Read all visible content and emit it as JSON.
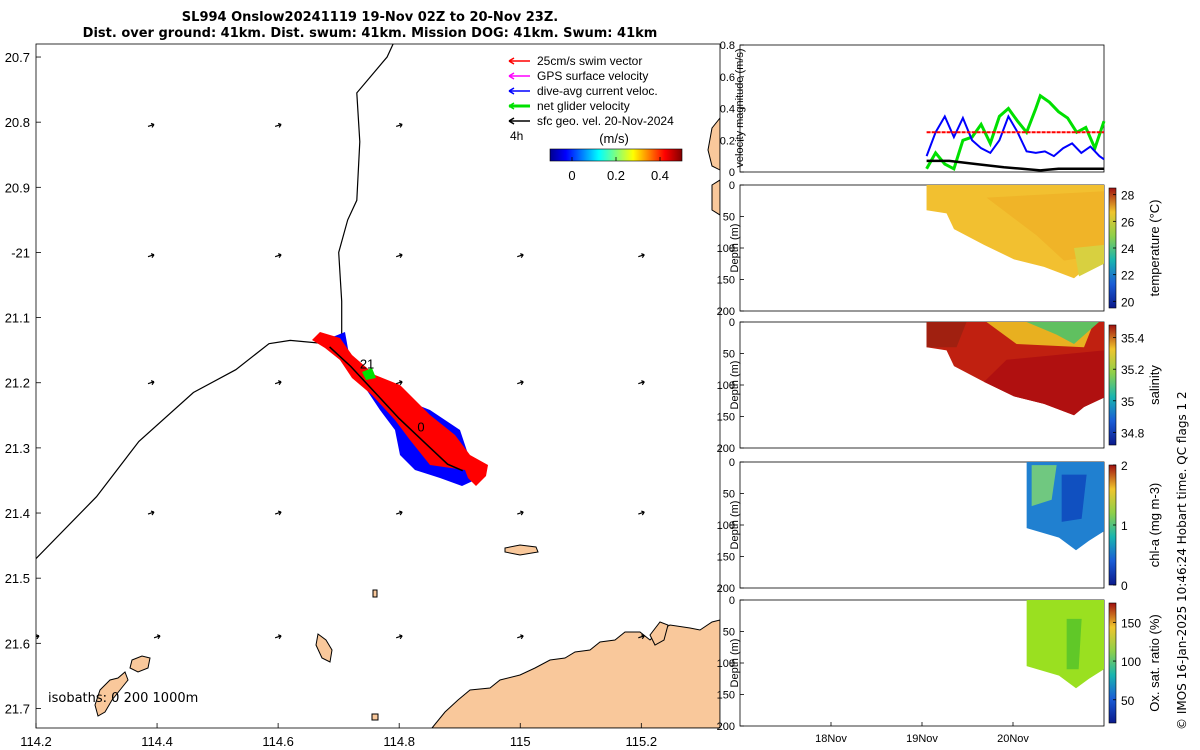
{
  "header": {
    "title_line1": "SL994 Onslow20241119 19-Nov 02Z to 20-Nov 23Z.",
    "title_line2": "Dist. over ground: 41km. Dist. swum: 41km. Mission DOG: 41km. Swum: 41km"
  },
  "footer_stamp": "© IMOS 16-Jan-2025 10:46:24 Hobart time. QC flags 1  2",
  "colors": {
    "land": "#f9c89b",
    "track": "#000000",
    "swim": "#ff0000",
    "gps": "#ff00ff",
    "current": "#0000ff",
    "net": "#00e000",
    "sfc": "#000000"
  },
  "chart_data": [
    {
      "type": "map",
      "name": "glider-track-map",
      "xaxis": {
        "ticks": [
          114.2,
          114.4,
          114.6,
          114.8,
          115,
          115.2
        ],
        "tick_labels": [
          "114.2",
          "114.4",
          "114.6",
          "114.8",
          "115",
          "115.2"
        ],
        "lim": [
          114.2,
          115.33
        ]
      },
      "yaxis": {
        "ticks": [
          -20.7,
          -20.8,
          -20.9,
          -21,
          -21.1,
          -21.2,
          -21.3,
          -21.4,
          -21.5,
          -21.6,
          -21.7
        ],
        "tick_labels": [
          "20.7",
          "20.8",
          "20.9",
          "-21",
          "21.1",
          "21.2",
          "21.3",
          "21.4",
          "21.5",
          "21.6",
          "21.7"
        ],
        "lim": [
          -21.73,
          -20.68
        ]
      },
      "legend": [
        {
          "label": "25cm/s swim vector",
          "color": "#ff0000"
        },
        {
          "label": "GPS surface velocity",
          "color": "#ff00ff"
        },
        {
          "label": "dive-avg current veloc.",
          "color": "#0000ff"
        },
        {
          "label": "net glider velocity",
          "color": "#00e000"
        },
        {
          "label": "sfc geo. vel. 20-Nov-2024",
          "color": "#000000"
        }
      ],
      "legend_extra": "4h",
      "colorbar": {
        "title": "(m/s)",
        "ticks": [
          "0",
          "0.2",
          "0.4"
        ],
        "range": [
          -0.1,
          0.5
        ]
      },
      "isobaths_label": "isobaths: 0  200  1000m",
      "annotations": [
        {
          "text": "21",
          "lon": 114.735,
          "lat": -21.178
        },
        {
          "text": "0",
          "lon": 114.83,
          "lat": -21.275
        }
      ],
      "glider_track": [
        [
          114.685,
          -21.145
        ],
        [
          114.72,
          -21.175
        ],
        [
          114.76,
          -21.215
        ],
        [
          114.8,
          -21.255
        ],
        [
          114.84,
          -21.29
        ],
        [
          114.88,
          -21.325
        ],
        [
          114.905,
          -21.335
        ]
      ],
      "coast_path_track": [
        [
          114.2,
          -21.47
        ],
        [
          114.3,
          -21.375
        ],
        [
          114.37,
          -21.29
        ],
        [
          114.46,
          -21.215
        ],
        [
          114.53,
          -21.18
        ],
        [
          114.585,
          -21.14
        ],
        [
          114.62,
          -21.135
        ],
        [
          114.68,
          -21.14
        ],
        [
          114.705,
          -21.125
        ],
        [
          114.705,
          -21.075
        ],
        [
          114.7,
          -21.0
        ],
        [
          114.715,
          -20.95
        ],
        [
          114.73,
          -20.92
        ],
        [
          114.735,
          -20.83
        ],
        [
          114.73,
          -20.755
        ],
        [
          114.78,
          -20.7
        ],
        [
          114.79,
          -20.68
        ]
      ],
      "geo_vectors": [
        [
          114.39,
          -20.805
        ],
        [
          114.6,
          -20.805
        ],
        [
          114.8,
          -20.805
        ],
        [
          114.39,
          -21.005
        ],
        [
          114.6,
          -21.005
        ],
        [
          114.8,
          -21.005
        ],
        [
          115.0,
          -21.005
        ],
        [
          115.2,
          -21.005
        ],
        [
          114.39,
          -21.2
        ],
        [
          114.6,
          -21.2
        ],
        [
          114.8,
          -21.2
        ],
        [
          115.0,
          -21.2
        ],
        [
          115.2,
          -21.2
        ],
        [
          114.39,
          -21.4
        ],
        [
          114.6,
          -21.4
        ],
        [
          114.8,
          -21.4
        ],
        [
          115.0,
          -21.4
        ],
        [
          115.2,
          -21.4
        ],
        [
          114.2,
          -21.59
        ],
        [
          114.4,
          -21.59
        ],
        [
          114.6,
          -21.59
        ],
        [
          114.8,
          -21.59
        ],
        [
          115.0,
          -21.59
        ],
        [
          115.2,
          -21.59
        ]
      ]
    },
    {
      "type": "line",
      "name": "velocity-magnitude",
      "ylabel": "velocity magnitude (m/s)",
      "ylim": [
        0,
        0.8
      ],
      "yticks": [
        "0",
        "0.2",
        "0.4",
        "0.6",
        "0.8"
      ],
      "xlim": [
        17.0,
        21.0
      ],
      "series": [
        {
          "name": "net glider velocity",
          "color": "#00e000",
          "x": [
            19.05,
            19.15,
            19.25,
            19.35,
            19.45,
            19.55,
            19.65,
            19.75,
            19.85,
            19.95,
            20.05,
            20.15,
            20.25,
            20.3,
            20.4,
            20.5,
            20.6,
            20.7,
            20.8,
            20.9,
            21.0
          ],
          "y": [
            0.02,
            0.12,
            0.05,
            0.02,
            0.2,
            0.22,
            0.3,
            0.18,
            0.35,
            0.4,
            0.32,
            0.25,
            0.4,
            0.48,
            0.44,
            0.38,
            0.34,
            0.25,
            0.28,
            0.15,
            0.32
          ]
        },
        {
          "name": "dive-avg current veloc.",
          "color": "#0000ff",
          "x": [
            19.05,
            19.15,
            19.25,
            19.35,
            19.45,
            19.55,
            19.65,
            19.75,
            19.85,
            19.95,
            20.05,
            20.15,
            20.25,
            20.35,
            20.45,
            20.55,
            20.65,
            20.75,
            20.85,
            20.95,
            21.0
          ],
          "y": [
            0.1,
            0.25,
            0.35,
            0.22,
            0.34,
            0.2,
            0.15,
            0.12,
            0.2,
            0.35,
            0.25,
            0.13,
            0.12,
            0.13,
            0.1,
            0.15,
            0.18,
            0.12,
            0.16,
            0.1,
            0.08
          ]
        },
        {
          "name": "25cm/s swim vector",
          "color": "#ff0000",
          "x": [
            19.05,
            21.0
          ],
          "y": [
            0.25,
            0.25
          ]
        },
        {
          "name": "sfc geo. vel.",
          "color": "#000000",
          "x": [
            19.05,
            19.3,
            19.6,
            19.9,
            20.1,
            20.3,
            20.5,
            20.7,
            21.0
          ],
          "y": [
            0.07,
            0.07,
            0.05,
            0.03,
            0.02,
            0.01,
            0.02,
            0.02,
            0.02
          ]
        }
      ]
    },
    {
      "type": "heatmap",
      "name": "temperature",
      "ylabel": "Depth (m)",
      "yticks": [
        "0",
        "50",
        "100",
        "150",
        "200"
      ],
      "ylim": [
        0,
        200
      ],
      "cbar_label": "temperature (°C)",
      "cbar_ticks": [
        "20",
        "22",
        "24",
        "26",
        "28"
      ],
      "cbar_range": [
        19.5,
        28.5
      ],
      "x_range": [
        19.05,
        21.0
      ]
    },
    {
      "type": "heatmap",
      "name": "salinity",
      "ylabel": "Depth (m)",
      "yticks": [
        "0",
        "50",
        "100",
        "150",
        "200"
      ],
      "ylim": [
        0,
        200
      ],
      "cbar_label": "salinity",
      "cbar_ticks": [
        "34.8",
        "35",
        "35.2",
        "35.4"
      ],
      "cbar_range": [
        34.72,
        35.48
      ],
      "x_range": [
        19.05,
        21.0
      ]
    },
    {
      "type": "heatmap",
      "name": "chl-a",
      "ylabel": "Depth (m)",
      "yticks": [
        "0",
        "50",
        "100",
        "150",
        "200"
      ],
      "ylim": [
        0,
        200
      ],
      "cbar_label": "chl-a (mg m-3)",
      "cbar_ticks": [
        "0",
        "1",
        "2"
      ],
      "cbar_range": [
        0,
        2
      ],
      "x_range": [
        20.15,
        21.0
      ]
    },
    {
      "type": "heatmap",
      "name": "oxygen",
      "ylabel": "Depth (m)",
      "yticks": [
        "0",
        "50",
        "100",
        "150",
        "200"
      ],
      "ylim": [
        0,
        200
      ],
      "cbar_label": "Ox. sat. ratio (%)",
      "cbar_ticks": [
        "50",
        "100",
        "150"
      ],
      "cbar_range": [
        20,
        175
      ],
      "x_range": [
        20.15,
        21.0
      ],
      "xticks": [
        "18Nov",
        "19Nov",
        "20Nov"
      ]
    }
  ]
}
